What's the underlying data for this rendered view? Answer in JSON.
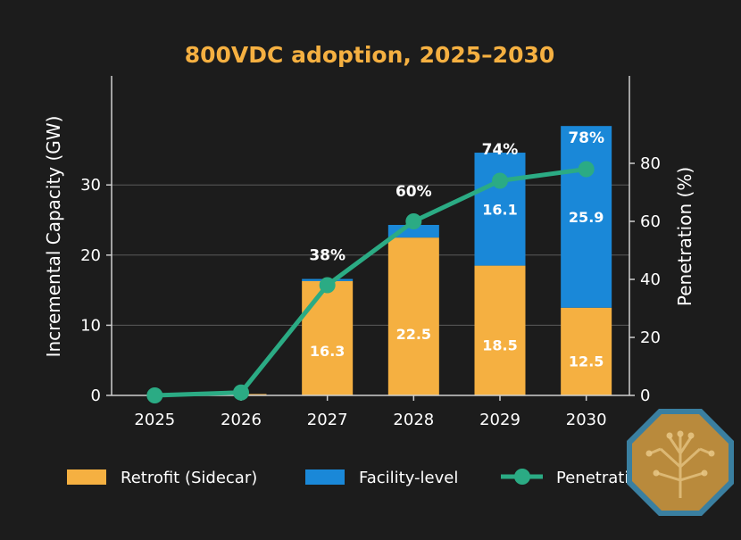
{
  "colors": {
    "background": "#1c1c1c",
    "title": "#f5b041",
    "retrofit": "#f5b041",
    "facility": "#1a88d8",
    "penetration": "#2bab84",
    "grid": "#5a5a5a",
    "axis": "#cfcfcf",
    "logo_fill": "#b98a3c",
    "logo_border": "#3a7fa0"
  },
  "logo_icon": "tree-circuit-icon",
  "chart_data": {
    "type": "bar",
    "stacked": true,
    "title": "800VDC adoption, 2025–2030",
    "categories": [
      "2025",
      "2026",
      "2027",
      "2028",
      "2029",
      "2030"
    ],
    "ylabel": "Incremental Capacity (GW)",
    "y2label": "Penetration (%)",
    "ylim": [
      0,
      40
    ],
    "y2lim": [
      0,
      100
    ],
    "yticks": [
      0,
      10,
      20,
      30
    ],
    "y2ticks": [
      0,
      20,
      40,
      60,
      80
    ],
    "grid": true,
    "legend_position": "bottom",
    "series": [
      {
        "name": "Retrofit (Sidecar)",
        "values": [
          0,
          0.2,
          16.3,
          22.5,
          18.5,
          12.5
        ],
        "labels": [
          "",
          "",
          "16.3",
          "22.5",
          "18.5",
          "12.5"
        ]
      },
      {
        "name": "Facility-level",
        "values": [
          0,
          0,
          0.3,
          1.8,
          16.1,
          25.9
        ],
        "labels": [
          "",
          "",
          "",
          "",
          "16.1",
          "25.9"
        ]
      }
    ],
    "line_series": {
      "name": "Penetration %",
      "axis": "right",
      "values": [
        0,
        1,
        38,
        60,
        74,
        78
      ],
      "labels": [
        "",
        "",
        "38%",
        "60%",
        "74%",
        "78%"
      ]
    }
  }
}
